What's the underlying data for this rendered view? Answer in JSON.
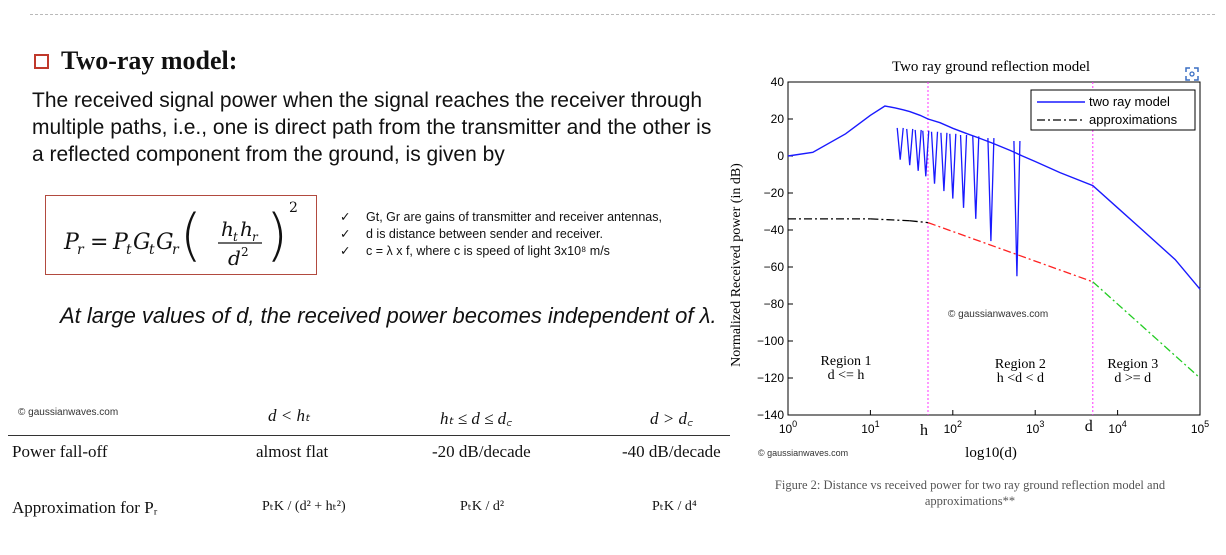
{
  "heading": "Two-ray model:",
  "paragraph": "The received signal power when the signal reaches the receiver through multiple paths, i.e., one is direct path from the transmitter and the other is a reflected component from the ground, is given by",
  "notes": [
    "Gt, Gr are gains of transmitter and receiver antennas,",
    "d is distance between sender and receiver.",
    "c = λ x f, where c is speed of light 3x10⁸ m/s"
  ],
  "conclusion": "At large values of d, the received power becomes independent of λ.",
  "table": {
    "watermark": "© gaussianwaves.com",
    "headers": [
      "d < hₜ",
      "hₜ ≤ d ≤ d꜀",
      "d > d꜀"
    ],
    "rows": [
      {
        "label": "Power fall-off",
        "values": [
          "almost flat",
          "-20 dB/decade",
          "-40 dB/decade"
        ]
      },
      {
        "label": "Approximation for Pᵣ",
        "values": [
          "PₜK / (d² + hₜ²)",
          "PₜK / d²",
          "PₜK / d⁴"
        ]
      }
    ]
  },
  "figure": {
    "caption": "Figure 2: Distance vs received power for two ray ground reflection model and approximations**",
    "watermark_inner": "© gaussianwaves.com",
    "watermark_bottom": "© gaussianwaves.com",
    "regions": [
      {
        "name": "Region 1",
        "cond": "d <= h"
      },
      {
        "name": "Region 2",
        "cond": "h <d < d"
      },
      {
        "name": "Region 3",
        "cond": "d >= d"
      }
    ],
    "ht_label": "h",
    "dc_label": "d"
  },
  "chart_data": {
    "type": "line",
    "title": "Two ray ground reflection model",
    "xlabel": "log10(d)",
    "ylabel": "Normalized Received power (in dB)",
    "xscale": "log",
    "xlim": [
      1,
      100000
    ],
    "ylim": [
      -140,
      40
    ],
    "y_ticks": [
      40,
      20,
      0,
      -20,
      -40,
      -60,
      -80,
      -100,
      -120,
      -140
    ],
    "x_ticks": [
      "10^0",
      "10^1",
      "10^2",
      "10^3",
      "10^4",
      "10^5"
    ],
    "grid": false,
    "legend_position": "top-right",
    "markers": {
      "ht": 50,
      "dc": 5000
    },
    "series": [
      {
        "name": "two ray model",
        "color": "#1a1aff",
        "x": [
          1,
          2,
          5,
          10,
          15,
          20,
          25,
          30,
          40,
          50,
          70,
          100,
          150,
          200,
          300,
          500,
          700,
          1000,
          2000,
          5000,
          10000,
          20000,
          50000,
          100000
        ],
        "y": [
          0,
          2,
          12,
          22,
          27,
          26,
          25,
          24,
          22,
          20,
          18,
          15,
          12,
          10,
          7,
          3,
          0,
          -3,
          -9,
          -16,
          -28,
          -40,
          -56,
          -72
        ]
      },
      {
        "name": "approximations",
        "color": "#000000",
        "x": [
          1,
          10,
          30,
          50,
          5000,
          100000
        ],
        "y": [
          -34,
          -34,
          -35,
          -36,
          -68,
          -120
        ]
      }
    ],
    "dips": [
      {
        "x": 23,
        "y": -2
      },
      {
        "x": 30,
        "y": -5
      },
      {
        "x": 38,
        "y": -8
      },
      {
        "x": 47,
        "y": -11
      },
      {
        "x": 60,
        "y": -15
      },
      {
        "x": 78,
        "y": -19
      },
      {
        "x": 100,
        "y": -23
      },
      {
        "x": 135,
        "y": -28
      },
      {
        "x": 190,
        "y": -34
      },
      {
        "x": 290,
        "y": -46
      },
      {
        "x": 600,
        "y": -65
      }
    ]
  }
}
